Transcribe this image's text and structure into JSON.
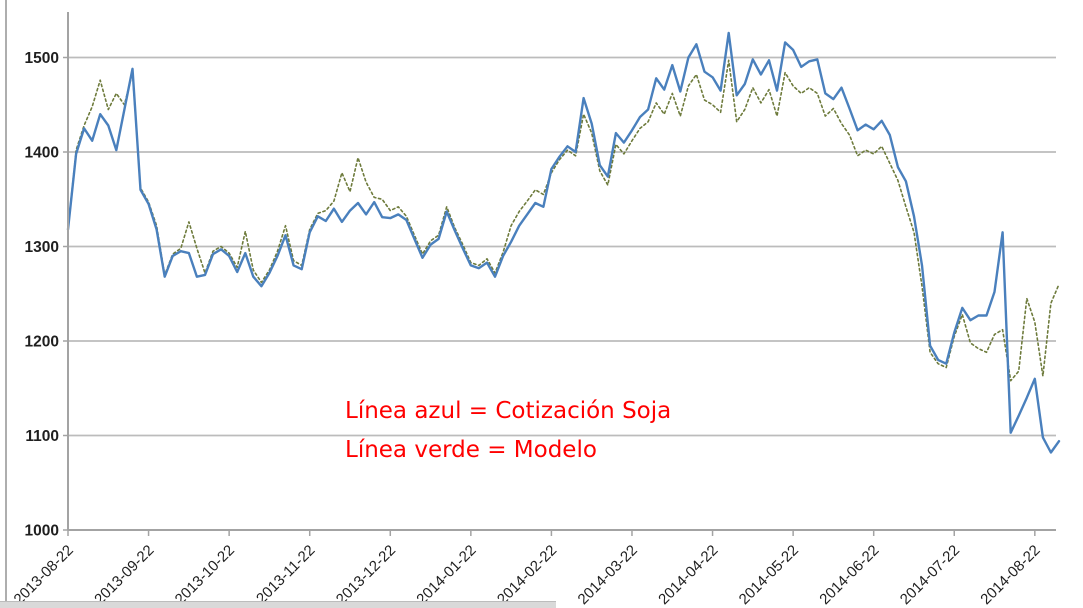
{
  "chart_data": {
    "type": "line",
    "title": "",
    "xlabel": "",
    "ylabel": "",
    "ylim": [
      1000,
      1500
    ],
    "y_ticks": [
      1000,
      1100,
      1200,
      1300,
      1400,
      1500
    ],
    "grid": "horizontal",
    "legend_position": "none",
    "x_tick_labels": [
      "2013-08-22",
      "2013-09-22",
      "2013-10-22",
      "2013-11-22",
      "2013-12-22",
      "2014-01-22",
      "2014-02-22",
      "2014-03-22",
      "2014-04-22",
      "2014-05-22",
      "2014-06-22",
      "2014-07-22",
      "2014-08-22"
    ],
    "x_tick_every": 10,
    "series": [
      {
        "name": "Cotización Soja",
        "color": "#4a80bd",
        "style": "solid",
        "values": [
          1318,
          1398,
          1425,
          1412,
          1440,
          1428,
          1402,
          1445,
          1488,
          1360,
          1345,
          1318,
          1268,
          1290,
          1295,
          1293,
          1268,
          1270,
          1292,
          1297,
          1290,
          1273,
          1293,
          1268,
          1258,
          1272,
          1290,
          1312,
          1280,
          1276,
          1315,
          1332,
          1327,
          1340,
          1326,
          1338,
          1346,
          1334,
          1347,
          1331,
          1330,
          1334,
          1328,
          1308,
          1288,
          1302,
          1308,
          1337,
          1317,
          1298,
          1280,
          1277,
          1283,
          1268,
          1290,
          1305,
          1322,
          1334,
          1346,
          1342,
          1382,
          1395,
          1406,
          1400,
          1457,
          1430,
          1386,
          1374,
          1420,
          1410,
          1423,
          1437,
          1445,
          1478,
          1466,
          1492,
          1464,
          1500,
          1514,
          1485,
          1479,
          1465,
          1526,
          1460,
          1472,
          1498,
          1482,
          1497,
          1465,
          1516,
          1508,
          1490,
          1496,
          1498,
          1462,
          1456,
          1468,
          1446,
          1423,
          1429,
          1424,
          1433,
          1418,
          1384,
          1369,
          1332,
          1280,
          1195,
          1180,
          1176,
          1209,
          1235,
          1222,
          1227,
          1227,
          1252,
          1315,
          1103,
          1121,
          1140,
          1160,
          1098,
          1082,
          1094
        ]
      },
      {
        "name": "Modelo",
        "color": "#6e7b3c",
        "style": "dotted",
        "values": [
          1318,
          1402,
          1428,
          1448,
          1476,
          1445,
          1462,
          1450,
          1484,
          1362,
          1347,
          1322,
          1270,
          1292,
          1298,
          1326,
          1298,
          1272,
          1295,
          1300,
          1293,
          1278,
          1316,
          1275,
          1262,
          1275,
          1295,
          1322,
          1285,
          1280,
          1318,
          1335,
          1338,
          1348,
          1378,
          1358,
          1394,
          1368,
          1352,
          1350,
          1338,
          1342,
          1332,
          1312,
          1292,
          1306,
          1312,
          1342,
          1320,
          1302,
          1283,
          1280,
          1287,
          1272,
          1294,
          1322,
          1337,
          1348,
          1360,
          1355,
          1378,
          1392,
          1402,
          1396,
          1440,
          1420,
          1380,
          1365,
          1408,
          1398,
          1412,
          1425,
          1432,
          1452,
          1440,
          1462,
          1438,
          1470,
          1482,
          1455,
          1450,
          1442,
          1497,
          1432,
          1445,
          1468,
          1452,
          1466,
          1438,
          1484,
          1470,
          1462,
          1468,
          1462,
          1438,
          1446,
          1430,
          1418,
          1396,
          1402,
          1398,
          1406,
          1388,
          1370,
          1342,
          1315,
          1258,
          1188,
          1176,
          1172,
          1205,
          1228,
          1198,
          1192,
          1188,
          1207,
          1212,
          1158,
          1168,
          1245,
          1220,
          1163,
          1240,
          1260
        ]
      }
    ],
    "axis_color": "#a3a3a3",
    "gridline_color": "#bcbcbc"
  },
  "annotation": {
    "line1": "Línea azul = Cotización Soja",
    "line2": "Línea verde = Modelo",
    "color": "#ff0000"
  }
}
